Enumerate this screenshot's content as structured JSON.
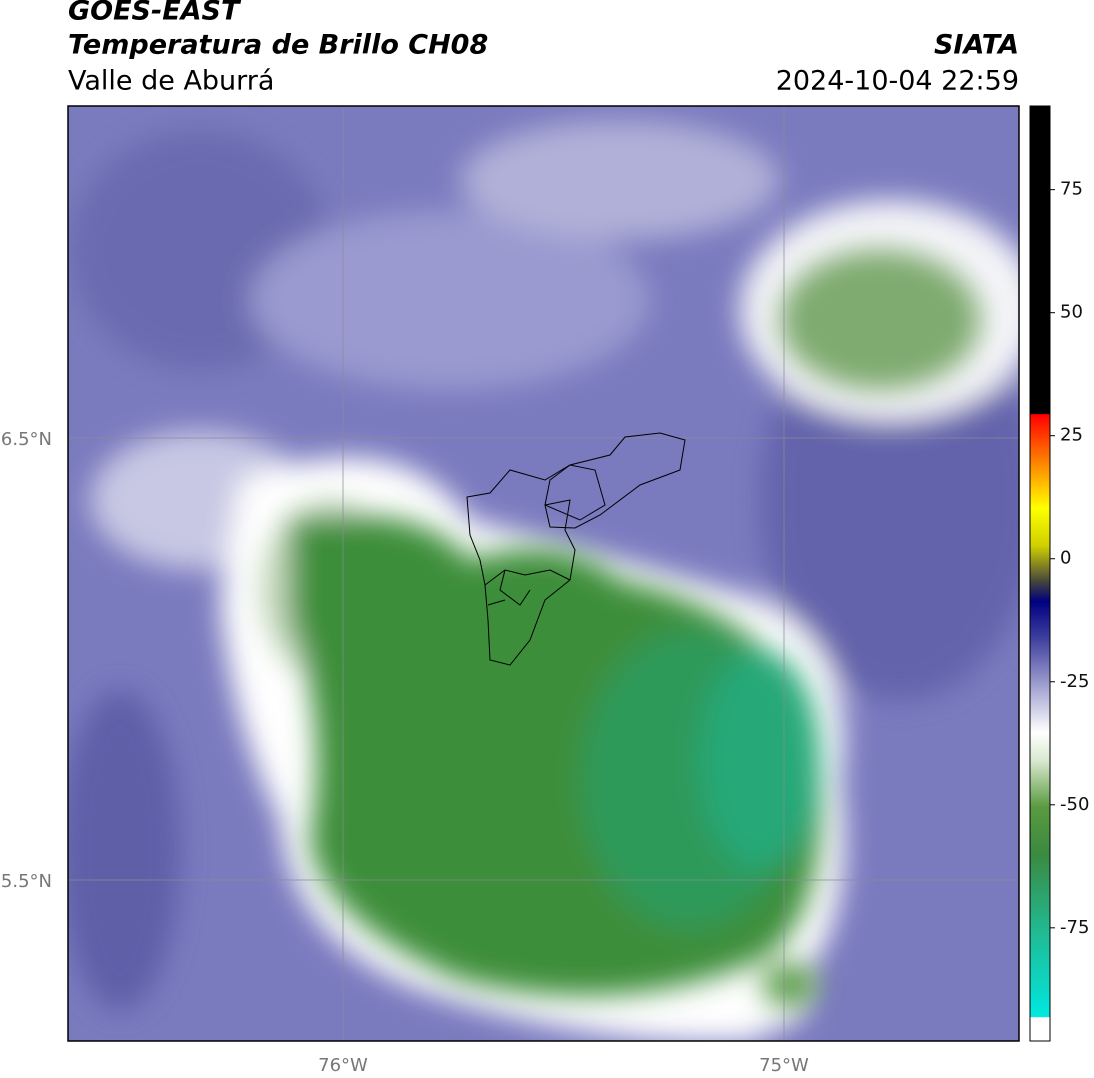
{
  "header": {
    "title": "GOES-EAST",
    "subtitle": "Temperatura de Brillo CH08",
    "region": "Valle de Aburrá",
    "source": "SIATA",
    "datetime": "2024-10-04 22:59"
  },
  "map": {
    "lat_labels": [
      "6.5°N",
      "5.5°N"
    ],
    "lon_labels": [
      "76°W",
      "75°W"
    ]
  },
  "colorbar": {
    "ylim": [
      -98,
      92
    ],
    "yticks": [
      75,
      50,
      25,
      0,
      -25,
      -50,
      -75
    ]
  }
}
